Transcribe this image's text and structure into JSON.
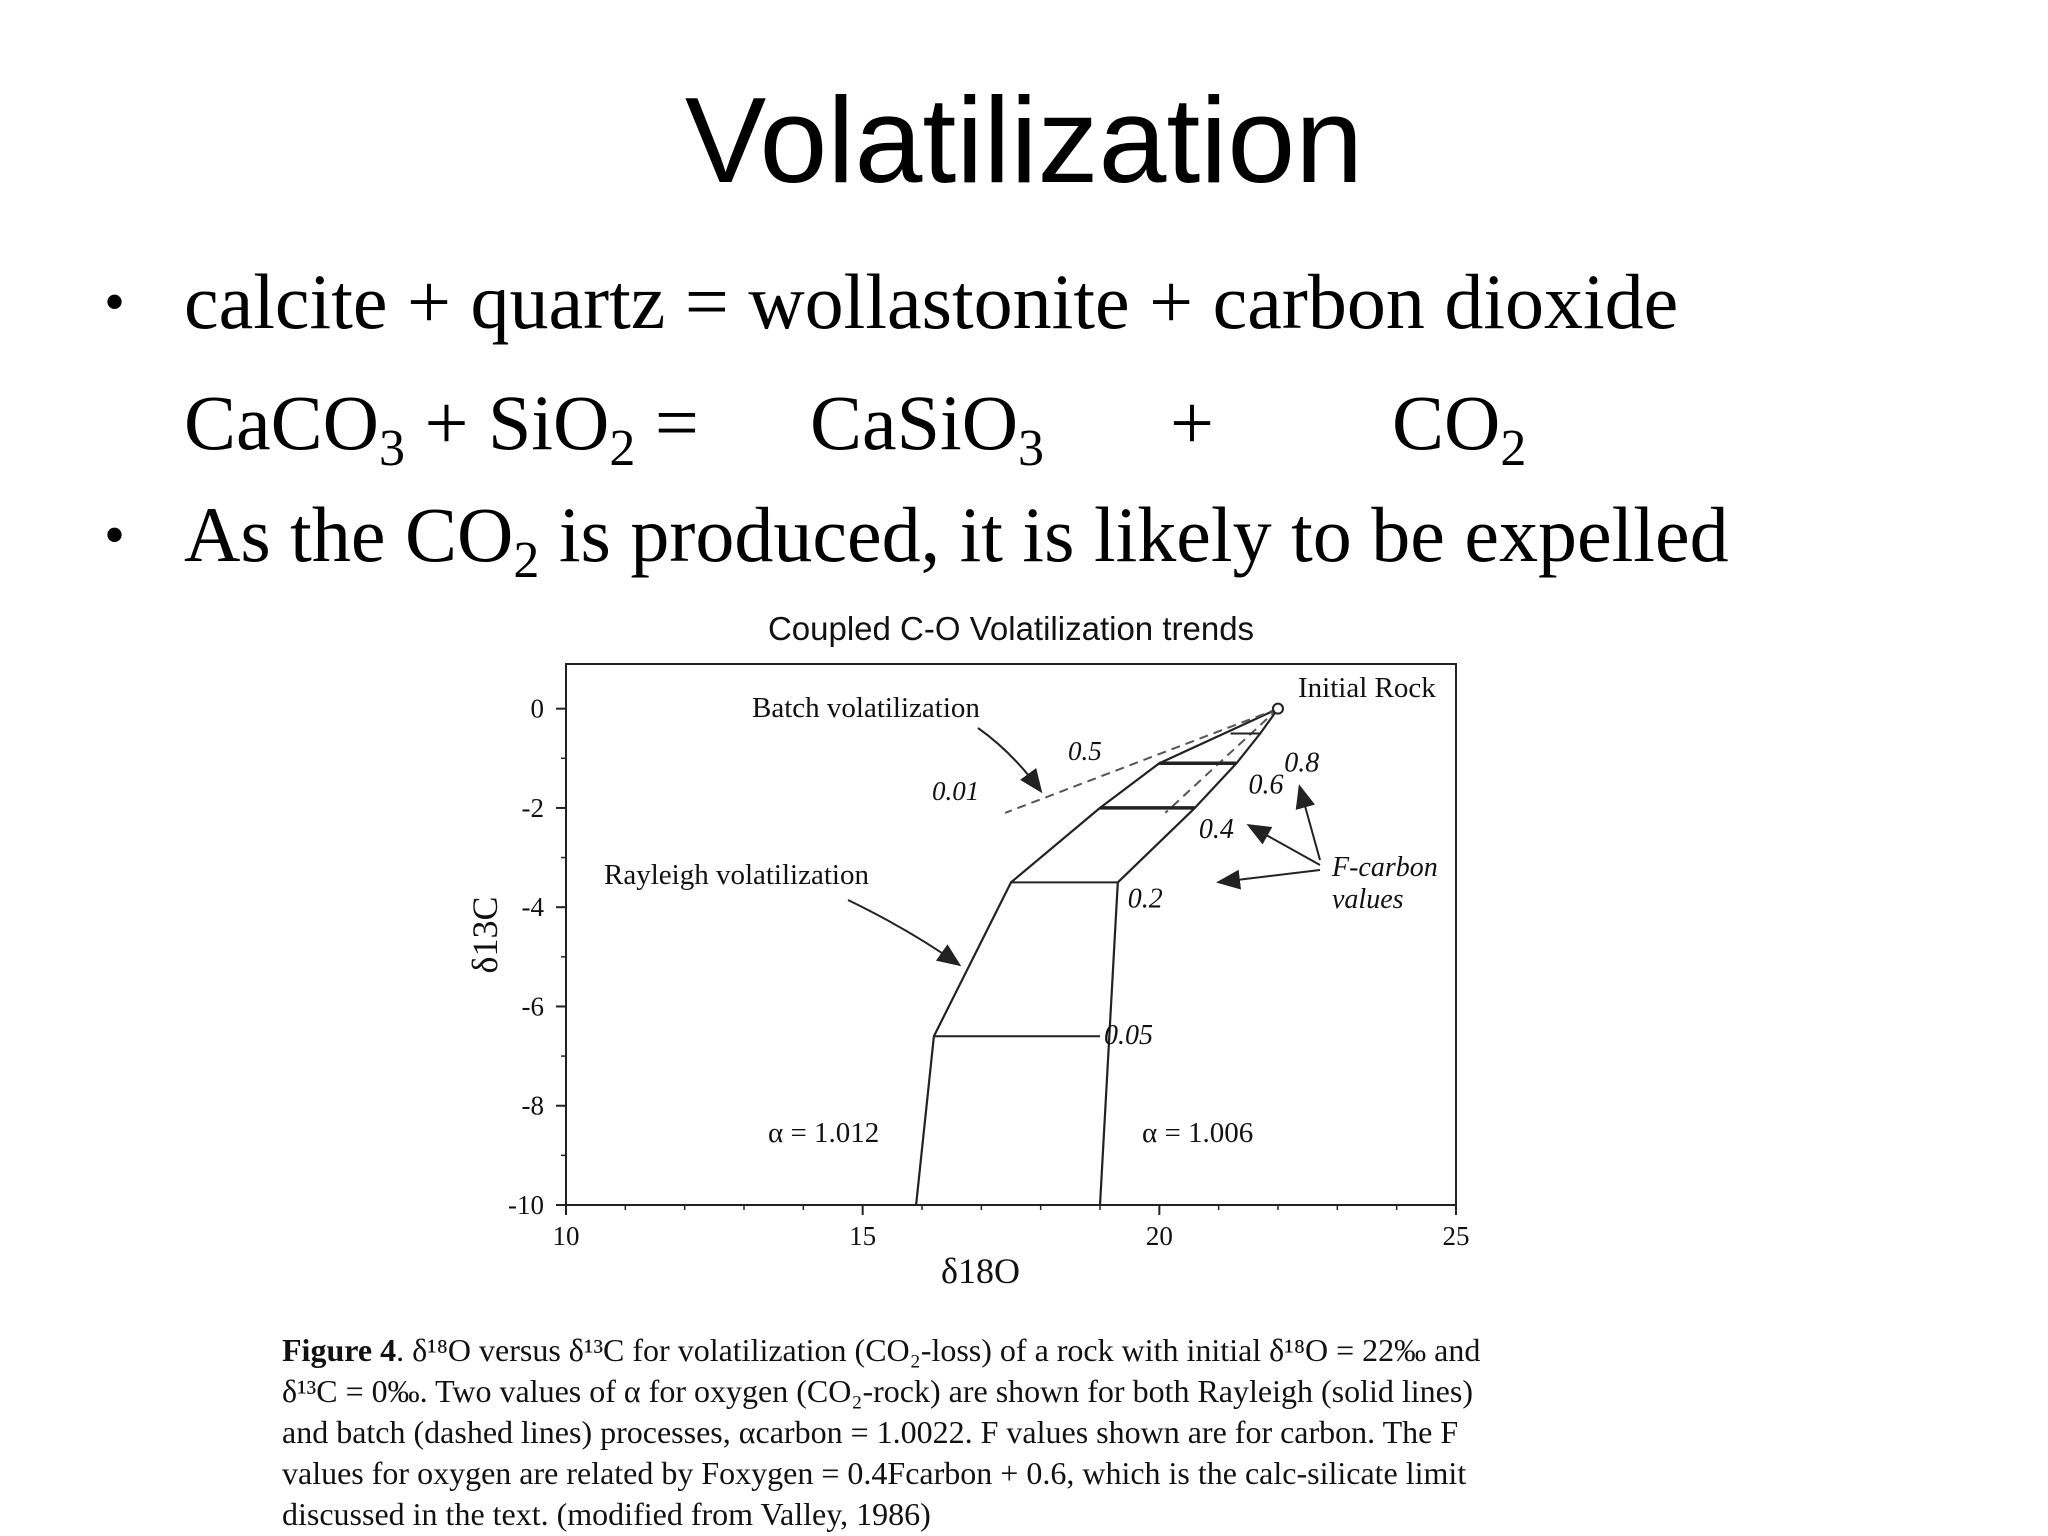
{
  "slide": {
    "title": "Volatilization",
    "bullet1": "calcite + quartz = wollastonite + carbon dioxide",
    "formula": {
      "r1": "CaCO",
      "r1_sub": "3",
      "plus1": "+",
      "r2": "SiO",
      "r2_sub": "2",
      "eq": "=",
      "p1": "CaSiO",
      "p1_sub": "3",
      "plus2": "+",
      "p2": "CO",
      "p2_sub": "2"
    },
    "bullet2": {
      "pre": "As the CO",
      "sub": "2",
      "post": " is produced, it is likely to be expelled"
    }
  },
  "chart_data": {
    "type": "line",
    "title": "Coupled C-O Volatilization trends",
    "xlabel": "δ18O",
    "ylabel": "δ13C",
    "xlim": [
      10,
      25
    ],
    "ylim": [
      -10,
      0.9
    ],
    "x_ticks": [
      "10",
      "15",
      "20",
      "25"
    ],
    "y_ticks": [
      "0",
      "-2",
      "-4",
      "-6",
      "-8",
      "-10"
    ],
    "x_tick_values": [
      10,
      15,
      20,
      25
    ],
    "y_tick_values": [
      0,
      -2,
      -4,
      -6,
      -8,
      -10
    ],
    "series": [
      {
        "name": "α = 1.012",
        "style": "solid",
        "x": [
          22,
          20.0,
          19.0,
          17.5,
          16.2,
          15.9
        ],
        "y": [
          0,
          -1.1,
          -2.0,
          -3.5,
          -6.6,
          -10.0
        ]
      },
      {
        "name": "α = 1.006",
        "style": "solid",
        "x": [
          22,
          21.7,
          21.3,
          20.6,
          19.3,
          19.0
        ],
        "y": [
          0,
          -0.5,
          -1.1,
          -2.0,
          -3.5,
          -10.0
        ]
      },
      {
        "name": "batch α = 1.012",
        "style": "dashed",
        "x": [
          22,
          17.4
        ],
        "y": [
          0,
          -2.1
        ]
      },
      {
        "name": "batch α = 1.006",
        "style": "dashed",
        "x": [
          22,
          20.1
        ],
        "y": [
          0,
          -2.1
        ]
      }
    ],
    "tie_lines": [
      {
        "label": "0.8",
        "y": -0.5,
        "x1": 21.2,
        "x2": 21.7
      },
      {
        "label": "0.6",
        "y": -1.1,
        "x1": 20.0,
        "x2": 21.3
      },
      {
        "label": "0.4",
        "y": -2.0,
        "x1": 19.0,
        "x2": 20.6
      },
      {
        "label": "0.2",
        "y": -3.5,
        "x1": 17.5,
        "x2": 19.3
      },
      {
        "label": "0.05",
        "y": -6.6,
        "x1": 16.2,
        "x2": 19.0
      }
    ],
    "annotations": {
      "initial_rock": "Initial Rock",
      "batch": "Batch volatilization",
      "rayleigh": "Rayleigh volatilization",
      "f_carbon_1": "F-carbon",
      "f_carbon_2": "values",
      "batch_05": "0.5",
      "batch_001": "0.01",
      "alpha_left": "α = 1.012",
      "alpha_right": "α = 1.006"
    }
  },
  "caption": {
    "fig": "Figure 4",
    "lines": [
      ".  δ¹⁸O versus δ¹³C for volatilization (CO₂-loss) of a rock with initial δ¹⁸O = 22‰ and",
      "δ¹³C = 0‰.  Two values of α for oxygen (CO₂-rock) are shown for both Rayleigh (solid lines)",
      "and batch (dashed lines) processes, αcarbon = 1.0022.  F values shown are for carbon.  The F",
      "values for oxygen are related by Foxygen = 0.4Fcarbon + 0.6, which is the calc-silicate limit",
      "discussed in the text.  (modified from Valley, 1986)"
    ]
  }
}
